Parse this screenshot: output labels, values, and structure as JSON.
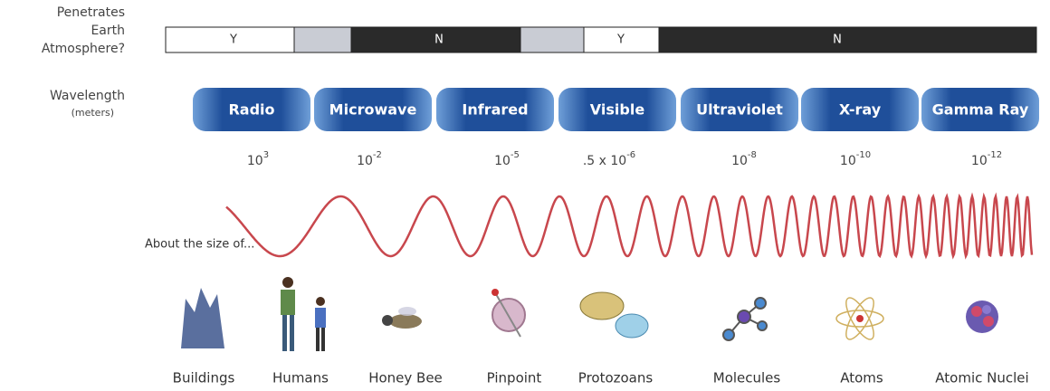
{
  "left_labels": {
    "atmosphere": [
      "Penetrates",
      "Earth",
      "Atmosphere?"
    ],
    "wavelength": "Wavelength",
    "units": "(meters)"
  },
  "atmosphere": [
    "Y",
    "N",
    "Y",
    "N"
  ],
  "bands": [
    "Radio",
    "Microwave",
    "Infrared",
    "Visible",
    "Ultraviolet",
    "X-ray",
    "Gamma Ray"
  ],
  "wavelengths": [
    {
      "base": "10",
      "exp": "3"
    },
    {
      "base": "10",
      "exp": "-2"
    },
    {
      "base": "10",
      "exp": "-5"
    },
    {
      "base": ".5 x 10",
      "exp": "-6"
    },
    {
      "base": "10",
      "exp": "-8"
    },
    {
      "base": "10",
      "exp": "-10"
    },
    {
      "base": "10",
      "exp": "-12"
    }
  ],
  "size_intro": "About the size of...",
  "sizes": [
    "Buildings",
    "Humans",
    "Honey Bee",
    "Pinpoint",
    "Protozoans",
    "Molecules",
    "Atoms",
    "Atomic Nuclei"
  ]
}
